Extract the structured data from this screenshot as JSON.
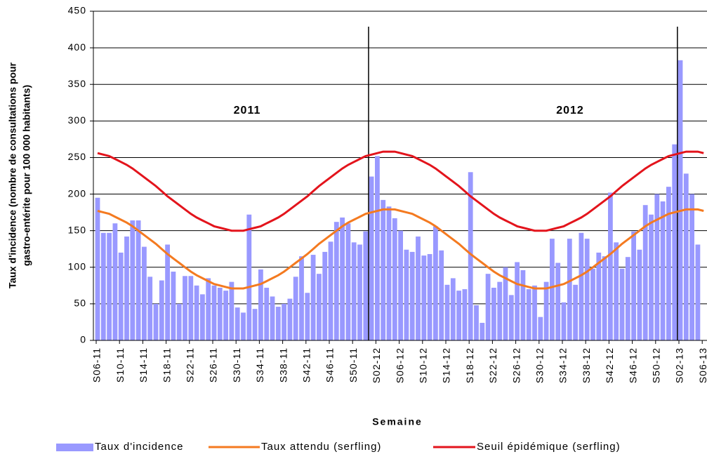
{
  "chart_data": {
    "type": "bar",
    "ylabel": [
      "Taux d'incidence (nombre de consultations pour",
      "gastro-entérite pour 100 000 habitants)"
    ],
    "xlabel": "Semaine",
    "annotations": [
      "2011",
      "2012"
    ],
    "ylim": [
      0,
      450
    ],
    "yticks": [
      0,
      50,
      100,
      150,
      200,
      250,
      300,
      350,
      400,
      450
    ],
    "grid": true,
    "legend": "bottom",
    "categories": [
      "S06-11",
      null,
      null,
      null,
      "S10-11",
      null,
      null,
      null,
      "S14-11",
      null,
      null,
      null,
      "S18-11",
      null,
      null,
      null,
      "S22-11",
      null,
      null,
      null,
      "S26-11",
      null,
      null,
      null,
      "S30-11",
      null,
      null,
      null,
      "S34-11",
      null,
      null,
      null,
      "S38-11",
      null,
      null,
      null,
      "S42-11",
      null,
      null,
      null,
      "S46-11",
      null,
      null,
      null,
      "S50-11",
      null,
      null,
      null,
      "S02-12",
      null,
      null,
      null,
      "S06-12",
      null,
      null,
      null,
      "S10-12",
      null,
      null,
      null,
      "S14-12",
      null,
      null,
      null,
      "S18-12",
      null,
      null,
      null,
      "S22-12",
      null,
      null,
      null,
      "S26-12",
      null,
      null,
      null,
      "S30-12",
      null,
      null,
      null,
      "S34-12",
      null,
      null,
      null,
      "S38-12",
      null,
      null,
      null,
      "S42-12",
      null,
      null,
      null,
      "S46-12",
      null,
      null,
      null,
      "S50-12",
      null,
      null,
      null,
      "S02-13",
      null,
      null,
      null,
      "S06-13"
    ],
    "series": [
      {
        "name": "Taux d'incidence",
        "type": "bar",
        "color": "#9999ff",
        "values": [
          195,
          147,
          147,
          160,
          120,
          142,
          164,
          164,
          128,
          87,
          50,
          82,
          131,
          94,
          50,
          88,
          88,
          75,
          63,
          85,
          75,
          72,
          68,
          80,
          45,
          38,
          172,
          43,
          97,
          72,
          60,
          46,
          50,
          57,
          87,
          115,
          65,
          117,
          91,
          121,
          135,
          162,
          168,
          160,
          134,
          131,
          149,
          224,
          252,
          192,
          183,
          167,
          150,
          124,
          121,
          142,
          116,
          118,
          156,
          123,
          76,
          85,
          68,
          70,
          230,
          48,
          24,
          91,
          72,
          80,
          100,
          62,
          107,
          96,
          70,
          75,
          32,
          80,
          139,
          106,
          52,
          139,
          76,
          147,
          139,
          98,
          120,
          115,
          202,
          134,
          98,
          114,
          149,
          124,
          185,
          172,
          200,
          190,
          210,
          268,
          383,
          228,
          200,
          131,
          null
        ]
      },
      {
        "name": "Taux attendu (serfling)",
        "type": "line",
        "color": "#f47a20",
        "values": [
          177,
          175,
          173,
          169,
          165,
          161,
          156,
          150,
          144,
          138,
          132,
          125,
          118,
          112,
          106,
          100,
          94,
          89,
          85,
          81,
          77,
          75,
          73,
          71,
          71,
          71,
          73,
          75,
          77,
          81,
          85,
          89,
          94,
          100,
          106,
          112,
          118,
          125,
          132,
          138,
          144,
          150,
          156,
          161,
          165,
          169,
          173,
          175,
          177,
          179,
          179,
          179,
          177,
          175,
          173,
          169,
          165,
          161,
          156,
          150,
          144,
          138,
          132,
          125,
          118,
          112,
          106,
          100,
          94,
          89,
          85,
          81,
          77,
          75,
          73,
          71,
          71,
          71,
          73,
          75,
          77,
          81,
          85,
          89,
          94,
          100,
          106,
          112,
          118,
          125,
          132,
          138,
          144,
          150,
          156,
          161,
          165,
          169,
          173,
          175,
          177,
          179,
          179,
          179,
          177
        ]
      },
      {
        "name": "Seuil épidémique (serfling)",
        "type": "line",
        "color": "#e3141c",
        "values": [
          256,
          254,
          252,
          248,
          244,
          240,
          235,
          229,
          223,
          217,
          211,
          204,
          197,
          191,
          185,
          179,
          173,
          168,
          164,
          160,
          156,
          154,
          152,
          150,
          150,
          150,
          152,
          154,
          156,
          160,
          164,
          168,
          173,
          179,
          185,
          191,
          197,
          204,
          211,
          217,
          223,
          229,
          235,
          240,
          244,
          248,
          252,
          254,
          256,
          258,
          258,
          258,
          256,
          254,
          252,
          248,
          244,
          240,
          235,
          229,
          223,
          217,
          211,
          204,
          197,
          191,
          185,
          179,
          173,
          168,
          164,
          160,
          156,
          154,
          152,
          150,
          150,
          150,
          152,
          154,
          156,
          160,
          164,
          168,
          173,
          179,
          185,
          191,
          197,
          204,
          211,
          217,
          223,
          229,
          235,
          240,
          244,
          248,
          252,
          254,
          256,
          258,
          258,
          258,
          256
        ]
      }
    ]
  }
}
